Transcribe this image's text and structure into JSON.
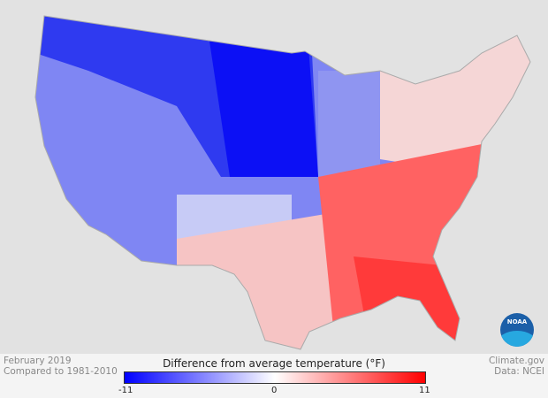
{
  "map": {
    "title": "Difference from average temperature (°F)",
    "period": "February 2019",
    "baseline": "Compared to 1981-2010",
    "legend": {
      "min_label": "-11",
      "mid_label": "0",
      "max_label": "11",
      "min": -11,
      "max": 11,
      "colors": {
        "cold": "#0000ff",
        "neutral": "#ffffff",
        "warm": "#ff0000"
      }
    }
  },
  "credits": {
    "source": "Climate.gov",
    "data": "Data: NCEI",
    "logo": "NOAA"
  }
}
